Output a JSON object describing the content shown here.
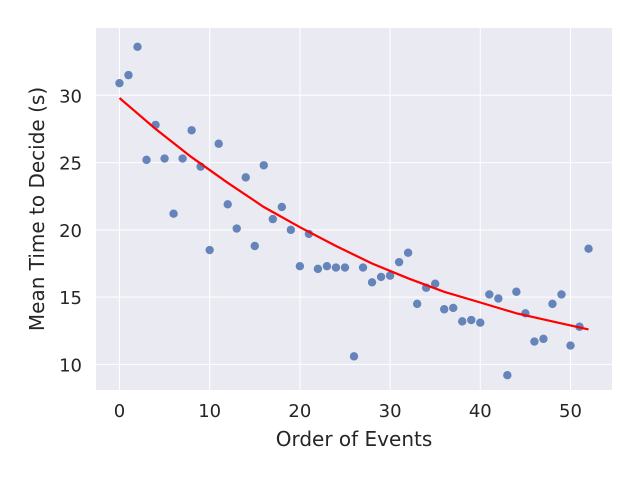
{
  "chart_data": {
    "type": "scatter",
    "title": "",
    "xlabel": "Order of Events",
    "ylabel": "Mean Time to Decide (s)",
    "xlim": [
      -2.6,
      54.6
    ],
    "ylim": [
      8.1,
      35.0
    ],
    "xticks": [
      0,
      10,
      20,
      30,
      40,
      50
    ],
    "yticks": [
      10,
      15,
      20,
      25,
      30
    ],
    "grid": true,
    "background_color": "#eaeaf2",
    "grid_color": "#ffffff",
    "series": [
      {
        "kind": "scatter",
        "color": "#4c72b0",
        "x": [
          0,
          1,
          2,
          3,
          4,
          5,
          6,
          7,
          8,
          9,
          10,
          11,
          12,
          13,
          14,
          15,
          16,
          17,
          18,
          19,
          20,
          21,
          22,
          23,
          24,
          25,
          26,
          27,
          28,
          29,
          30,
          31,
          32,
          33,
          34,
          35,
          36,
          37,
          38,
          39,
          40,
          41,
          42,
          43,
          44,
          45,
          46,
          47,
          48,
          49,
          50,
          51,
          52
        ],
        "y": [
          30.9,
          31.5,
          33.6,
          25.2,
          27.8,
          25.3,
          21.2,
          25.3,
          27.4,
          24.7,
          18.5,
          26.4,
          21.9,
          20.1,
          23.9,
          18.8,
          24.8,
          20.8,
          21.7,
          20.0,
          17.3,
          19.7,
          17.1,
          17.3,
          17.2,
          17.2,
          10.6,
          17.2,
          16.1,
          16.5,
          16.6,
          17.6,
          18.3,
          14.5,
          15.7,
          16.0,
          14.1,
          14.2,
          13.2,
          13.3,
          13.1,
          15.2,
          14.9,
          9.2,
          15.4,
          13.8,
          11.7,
          11.9,
          14.5,
          15.2,
          11.4,
          12.8,
          18.6
        ]
      },
      {
        "kind": "line",
        "color": "#ff0000",
        "x": [
          0,
          4,
          8,
          12,
          16,
          20,
          24,
          28,
          32,
          36,
          40,
          44,
          48,
          52
        ],
        "y": [
          29.8,
          27.5,
          25.4,
          23.5,
          21.7,
          20.2,
          18.8,
          17.5,
          16.4,
          15.4,
          14.6,
          13.8,
          13.2,
          12.6
        ]
      }
    ]
  }
}
